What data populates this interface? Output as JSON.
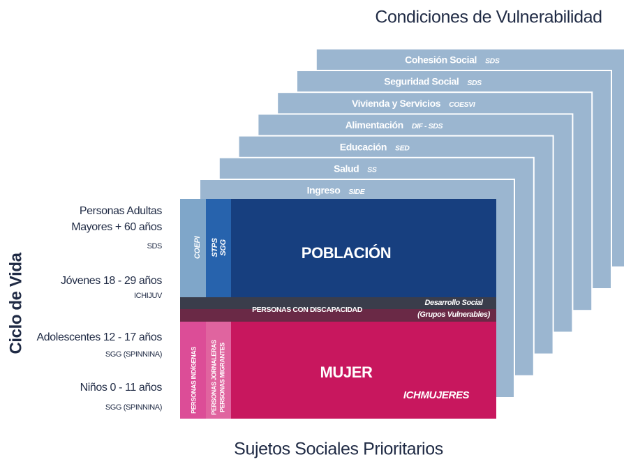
{
  "title": "Condiciones de Vulnerabilidad",
  "footer": "Sujetos Sociales Prioritarios",
  "axis_label": "Ciclo de Vida",
  "layers": [
    {
      "name": "Cohesión Social",
      "agency": "SDS"
    },
    {
      "name": "Seguridad Social",
      "agency": "SDS"
    },
    {
      "name": "Vivienda y Servicios",
      "agency": "COESVI"
    },
    {
      "name": "Alimentación",
      "agency": "DIF - SDS"
    },
    {
      "name": "Educación",
      "agency": "SED"
    },
    {
      "name": "Salud",
      "agency": "SS"
    },
    {
      "name": "Ingreso",
      "agency": "SIDE"
    }
  ],
  "life_cycle": [
    {
      "lines": [
        "Personas Adultas",
        "Mayores + 60 años"
      ],
      "agency": "SDS"
    },
    {
      "lines": [
        "Jóvenes 18 - 29 años"
      ],
      "agency": "ICHIJUV"
    },
    {
      "lines": [
        "Adolescentes 12 - 17 años"
      ],
      "agency": "SGG (SPINNINA)"
    },
    {
      "lines": [
        "Niños 0 - 11 años"
      ],
      "agency": "SGG (SPINNINA)"
    }
  ],
  "panel": {
    "coepi": "COEPI",
    "stps": [
      "STPS",
      "SGG"
    ],
    "poblacion": "POBLACIÓN",
    "discapacidad": "PERSONAS CON DISCAPACIDAD",
    "desarrollo": [
      "Desarrollo Social",
      "(Grupos Vulnerables)"
    ],
    "indigenas": "PERSONAS INDÍGENAS",
    "jornaleras": [
      "PERSONAS JORNALERAS",
      "PERSONAS MIGRANTES"
    ],
    "mujer": "MUJER",
    "ichmujeres": "ICHMUJERES"
  }
}
